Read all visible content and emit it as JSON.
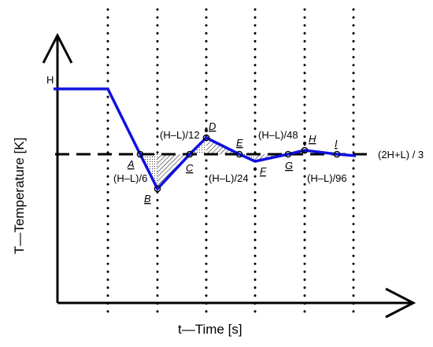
{
  "title": "",
  "x_axis_label": "t—Time [s]",
  "y_axis_label": "T—Temperature [K]",
  "high_label": "H",
  "reference_label": "(2H+L) / 3",
  "points": [
    {
      "id": "A",
      "label": "A"
    },
    {
      "id": "B",
      "label": "B"
    },
    {
      "id": "C",
      "label": "C"
    },
    {
      "id": "D",
      "label": "D"
    },
    {
      "id": "E",
      "label": "E"
    },
    {
      "id": "F",
      "label": "F"
    },
    {
      "id": "G",
      "label": "G"
    },
    {
      "id": "H",
      "label": "H"
    },
    {
      "id": "I",
      "label": "I"
    }
  ],
  "annotations": [
    {
      "id": "b-offset",
      "text": "(H–L)/6"
    },
    {
      "id": "d-offset",
      "text": "(H–L)/12"
    },
    {
      "id": "f-offset",
      "text": "(H–L)/24"
    },
    {
      "id": "h-offset",
      "text": "(H–L)/48"
    },
    {
      "id": "i-offset",
      "text": "(H–L)/96"
    }
  ],
  "colors": {
    "curve": "#1010e0",
    "axes": "#000000",
    "reference_line": "#000000",
    "hatch": "#000000"
  }
}
